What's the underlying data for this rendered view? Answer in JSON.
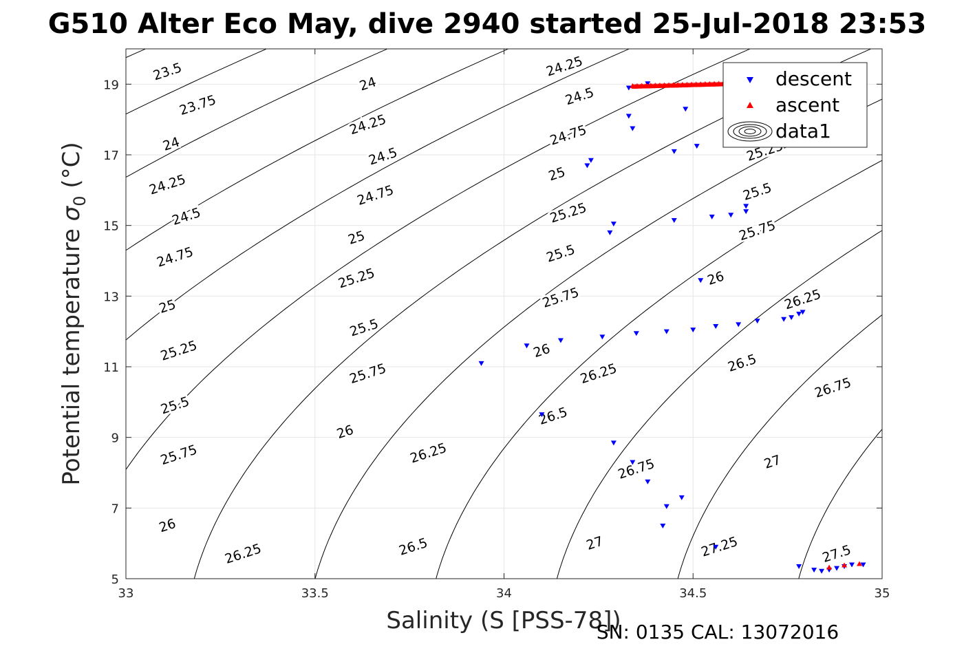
{
  "title": "G510 Alter Eco May, dive 2940 started 25-Jul-2018 23:53",
  "footer": "SN: 0135  CAL: 13072016",
  "chart_data": {
    "type": "scatter",
    "xlabel": "Salinity (S [PSS-78])",
    "ylabel_main": "Potential temperature ",
    "ylabel_sym": "σ",
    "ylabel_sub": "0",
    "ylabel_unit": " (°C)",
    "xlim": [
      33,
      35
    ],
    "ylim": [
      5,
      20
    ],
    "xticks": [
      33,
      33.5,
      34,
      34.5,
      35
    ],
    "xtick_labels": [
      "33",
      "33.5",
      "34",
      "34.5",
      "35"
    ],
    "yticks": [
      5,
      7,
      9,
      11,
      13,
      15,
      17,
      19
    ],
    "ytick_labels": [
      "5",
      "7",
      "9",
      "11",
      "13",
      "15",
      "17",
      "19"
    ],
    "grid": true,
    "legend_position": "top-right",
    "contour_levels": [
      23.5,
      23.75,
      24,
      24.25,
      24.5,
      24.75,
      25,
      25.25,
      25.5,
      25.75,
      26,
      26.25,
      26.5,
      26.75,
      27,
      27.25,
      27.5
    ],
    "contour_labels": [
      {
        "text": "23.5",
        "x": 33.11,
        "y": 19.35
      },
      {
        "text": "23.75",
        "x": 33.19,
        "y": 18.4
      },
      {
        "text": "24",
        "x": 33.12,
        "y": 17.3
      },
      {
        "text": "24.25",
        "x": 33.11,
        "y": 16.15
      },
      {
        "text": "24.5",
        "x": 33.16,
        "y": 15.25
      },
      {
        "text": "24.75",
        "x": 33.13,
        "y": 14.1
      },
      {
        "text": "25",
        "x": 33.11,
        "y": 12.7
      },
      {
        "text": "25.25",
        "x": 33.14,
        "y": 11.45
      },
      {
        "text": "25.5",
        "x": 33.13,
        "y": 9.9
      },
      {
        "text": "25.75",
        "x": 33.14,
        "y": 8.5
      },
      {
        "text": "26",
        "x": 33.11,
        "y": 6.5
      },
      {
        "text": "26.25",
        "x": 33.31,
        "y": 5.7
      },
      {
        "text": "24",
        "x": 33.64,
        "y": 19.0
      },
      {
        "text": "24.25",
        "x": 33.64,
        "y": 17.85
      },
      {
        "text": "24.5",
        "x": 33.68,
        "y": 16.95
      },
      {
        "text": "24.75",
        "x": 33.66,
        "y": 15.85
      },
      {
        "text": "25",
        "x": 33.61,
        "y": 14.65
      },
      {
        "text": "25.25",
        "x": 33.61,
        "y": 13.5
      },
      {
        "text": "25.5",
        "x": 33.63,
        "y": 12.1
      },
      {
        "text": "25.75",
        "x": 33.64,
        "y": 10.8
      },
      {
        "text": "26",
        "x": 33.58,
        "y": 9.15
      },
      {
        "text": "26.25",
        "x": 33.8,
        "y": 8.55
      },
      {
        "text": "26.5",
        "x": 33.76,
        "y": 5.9
      },
      {
        "text": "24.25",
        "x": 34.16,
        "y": 19.5
      },
      {
        "text": "24.5",
        "x": 34.2,
        "y": 18.65
      },
      {
        "text": "24.75",
        "x": 34.17,
        "y": 17.55
      },
      {
        "text": "25",
        "x": 34.14,
        "y": 16.45
      },
      {
        "text": "25.25",
        "x": 34.17,
        "y": 15.35
      },
      {
        "text": "25.5",
        "x": 34.15,
        "y": 14.2
      },
      {
        "text": "25.75",
        "x": 34.15,
        "y": 12.95
      },
      {
        "text": "26",
        "x": 34.1,
        "y": 11.45
      },
      {
        "text": "26.25",
        "x": 34.25,
        "y": 10.8
      },
      {
        "text": "26.5",
        "x": 34.13,
        "y": 9.6
      },
      {
        "text": "26.75",
        "x": 34.35,
        "y": 8.1
      },
      {
        "text": "27",
        "x": 34.24,
        "y": 6.0
      },
      {
        "text": "27.25",
        "x": 34.57,
        "y": 5.9
      },
      {
        "text": "25.25",
        "x": 34.69,
        "y": 17.1
      },
      {
        "text": "25.5",
        "x": 34.67,
        "y": 15.95
      },
      {
        "text": "25.75",
        "x": 34.67,
        "y": 14.85
      },
      {
        "text": "26",
        "x": 34.56,
        "y": 13.5
      },
      {
        "text": "26.25",
        "x": 34.79,
        "y": 12.9
      },
      {
        "text": "26.5",
        "x": 34.63,
        "y": 11.1
      },
      {
        "text": "26.75",
        "x": 34.87,
        "y": 10.4
      },
      {
        "text": "27",
        "x": 34.71,
        "y": 8.3
      },
      {
        "text": "27.5",
        "x": 34.88,
        "y": 5.7
      }
    ],
    "series": [
      {
        "name": "descent",
        "marker": "triangle-down",
        "color": "#0000ff",
        "points": [
          [
            34.33,
            18.9
          ],
          [
            34.38,
            19.02
          ],
          [
            34.33,
            18.1
          ],
          [
            34.34,
            17.75
          ],
          [
            34.48,
            18.3
          ],
          [
            34.45,
            17.1
          ],
          [
            34.51,
            17.25
          ],
          [
            34.22,
            16.7
          ],
          [
            34.23,
            16.85
          ],
          [
            34.28,
            14.8
          ],
          [
            34.29,
            15.05
          ],
          [
            34.45,
            15.15
          ],
          [
            34.55,
            15.25
          ],
          [
            34.6,
            15.3
          ],
          [
            34.64,
            15.55
          ],
          [
            34.64,
            15.4
          ],
          [
            34.52,
            13.45
          ],
          [
            33.94,
            11.1
          ],
          [
            34.06,
            11.6
          ],
          [
            34.15,
            11.75
          ],
          [
            34.26,
            11.85
          ],
          [
            34.35,
            11.95
          ],
          [
            34.43,
            12.0
          ],
          [
            34.5,
            12.05
          ],
          [
            34.56,
            12.15
          ],
          [
            34.62,
            12.2
          ],
          [
            34.67,
            12.3
          ],
          [
            34.74,
            12.35
          ],
          [
            34.76,
            12.4
          ],
          [
            34.78,
            12.5
          ],
          [
            34.79,
            12.55
          ],
          [
            34.1,
            9.65
          ],
          [
            34.29,
            8.85
          ],
          [
            34.34,
            8.3
          ],
          [
            34.38,
            7.75
          ],
          [
            34.43,
            7.05
          ],
          [
            34.47,
            7.3
          ],
          [
            34.42,
            6.5
          ],
          [
            34.56,
            5.9
          ],
          [
            34.78,
            5.35
          ],
          [
            34.82,
            5.25
          ],
          [
            34.84,
            5.22
          ],
          [
            34.86,
            5.25
          ],
          [
            34.88,
            5.3
          ],
          [
            34.9,
            5.35
          ],
          [
            34.92,
            5.4
          ],
          [
            34.95,
            5.4
          ]
        ]
      },
      {
        "name": "ascent",
        "marker": "triangle-up",
        "color": "#ff0000",
        "x_start": 34.34,
        "x_end": 34.58,
        "y_start": 18.93,
        "y_end": 19.0,
        "bottom_points": [
          [
            34.86,
            5.32
          ],
          [
            34.9,
            5.38
          ],
          [
            34.94,
            5.42
          ]
        ]
      },
      {
        "name": "data1",
        "marker": "contour",
        "color": "#000000"
      }
    ]
  }
}
